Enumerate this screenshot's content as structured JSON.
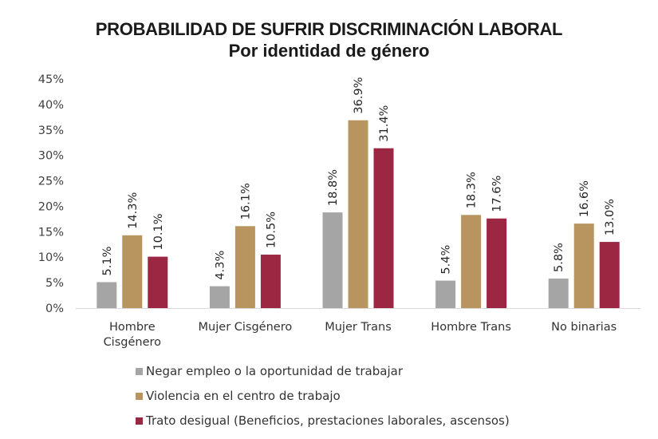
{
  "chart_data": {
    "type": "bar",
    "title": "PROBABILIDAD DE SUFRIR DISCRIMINACIÓN LABORAL",
    "subtitle": "Por identidad de género",
    "xlabel": "",
    "ylabel": "",
    "ylim": [
      0,
      45
    ],
    "yticks": [
      "0%",
      "5%",
      "10%",
      "15%",
      "20%",
      "25%",
      "30%",
      "35%",
      "40%",
      "45%"
    ],
    "ytick_values": [
      0,
      5,
      10,
      15,
      20,
      25,
      30,
      35,
      40,
      45
    ],
    "categories": [
      "Hombre Cisgénero",
      "Mujer Cisgénero",
      "Mujer Trans",
      "Hombre Trans",
      "No binarias"
    ],
    "category_lines": [
      [
        "Hombre",
        "Cisgénero"
      ],
      [
        "Mujer Cisgénero"
      ],
      [
        "Mujer Trans"
      ],
      [
        "Hombre Trans"
      ],
      [
        "No binarias"
      ]
    ],
    "grid": false,
    "legend_position": "bottom",
    "series": [
      {
        "name": "Negar empleo o la oportunidad de trabajar",
        "color": "#a5a5a5",
        "values": [
          5.1,
          4.3,
          18.8,
          5.4,
          5.8
        ],
        "labels": [
          "5.1%",
          "4.3%",
          "18.8%",
          "5.4%",
          "5.8%"
        ]
      },
      {
        "name": "Violencia en el centro de trabajo",
        "color": "#b8955e",
        "values": [
          14.3,
          16.1,
          36.9,
          18.3,
          16.6
        ],
        "labels": [
          "14.3%",
          "16.1%",
          "36.9%",
          "18.3%",
          "16.6%"
        ]
      },
      {
        "name": "Trato desigual (Beneficios, prestaciones laborales, ascensos)",
        "color": "#9b2743",
        "values": [
          10.1,
          10.5,
          31.4,
          17.6,
          13.0
        ],
        "labels": [
          "10.1%",
          "10.5%",
          "31.4%",
          "17.6%",
          "13.0%"
        ]
      }
    ]
  }
}
